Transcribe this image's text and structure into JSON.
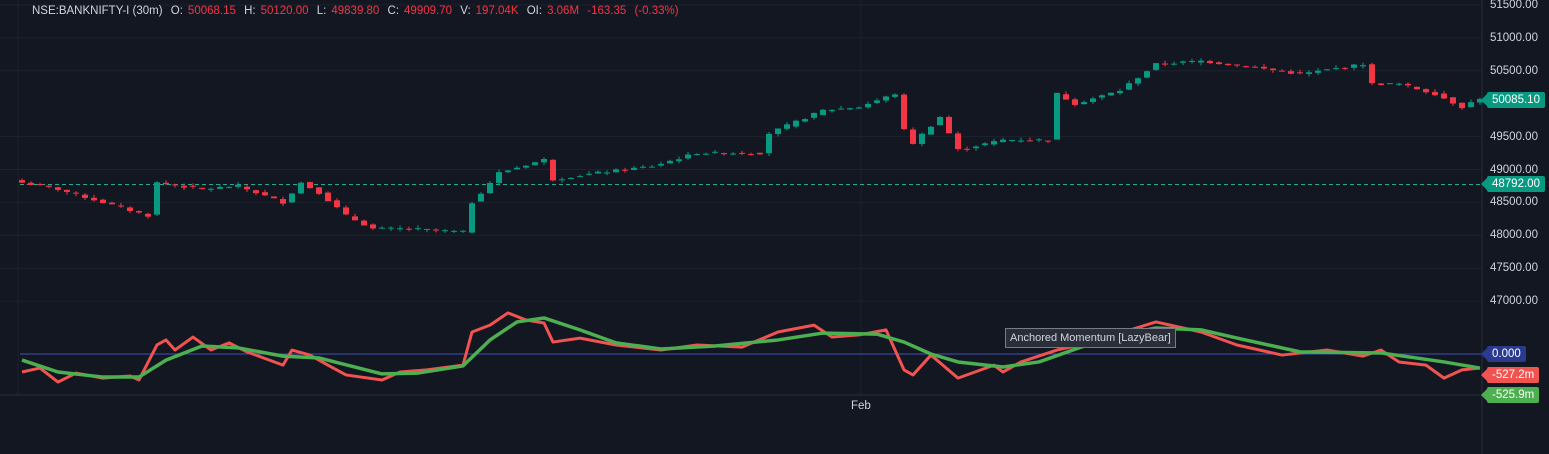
{
  "header": {
    "symbol": "NSE:BANKNIFTY-I (30m)",
    "open_label": "O:",
    "open": "50068.15",
    "high_label": "H:",
    "high": "50120.00",
    "low_label": "L:",
    "low": "49839.80",
    "close_label": "C:",
    "close": "49909.70",
    "volume_label": "V:",
    "volume": "197.04K",
    "oi_label": "OI:",
    "oi": "3.06M",
    "change": "-163.35",
    "change_pct": "(-0.33%)"
  },
  "price_axis": {
    "ticks": [
      "51500.00",
      "51000.00",
      "50500.00",
      "49500.00",
      "49000.00",
      "48500.00",
      "48000.00",
      "47500.00",
      "47000.00"
    ],
    "tick_values": [
      51500,
      51000,
      50500,
      49500,
      49000,
      48500,
      48000,
      47500,
      47000
    ],
    "last_price": "50085.10",
    "reference_price": "48792.00"
  },
  "indicator_axis": {
    "zero": "0.000",
    "momentum": "-527.2m",
    "signal": "-525.9m"
  },
  "tooltip": "Anchored Momentum [LazyBear]",
  "time_axis": {
    "label": "Feb"
  },
  "colors": {
    "background": "#131722",
    "up": "#089981",
    "down": "#f23645",
    "momentum": "#f05350",
    "signal": "#4caf50",
    "zero_line": "#3f51b5",
    "reference_line": "#22ab94"
  },
  "chart_data": {
    "type": "candlestick",
    "bars": 163,
    "price_ylim": [
      46700,
      51550
    ],
    "close_keypoints": [
      [
        0,
        48800
      ],
      [
        4,
        48700
      ],
      [
        9,
        48500
      ],
      [
        14,
        48300
      ],
      [
        15,
        48800
      ],
      [
        20,
        48700
      ],
      [
        24,
        48750
      ],
      [
        29,
        48500
      ],
      [
        31,
        48800
      ],
      [
        33,
        48650
      ],
      [
        36,
        48300
      ],
      [
        39,
        48100
      ],
      [
        43,
        48100
      ],
      [
        49,
        48050
      ],
      [
        50,
        48500
      ],
      [
        53,
        48950
      ],
      [
        58,
        49150
      ],
      [
        59,
        48850
      ],
      [
        64,
        48950
      ],
      [
        70,
        49050
      ],
      [
        75,
        49250
      ],
      [
        82,
        49250
      ],
      [
        83,
        49550
      ],
      [
        89,
        49900
      ],
      [
        93,
        49950
      ],
      [
        97,
        50150
      ],
      [
        98,
        49600
      ],
      [
        99,
        49400
      ],
      [
        102,
        49800
      ],
      [
        104,
        49300
      ],
      [
        109,
        49450
      ],
      [
        114,
        49450
      ],
      [
        115,
        50150
      ],
      [
        117,
        50000
      ],
      [
        122,
        50200
      ],
      [
        126,
        50600
      ],
      [
        131,
        50650
      ],
      [
        137,
        50550
      ],
      [
        142,
        50450
      ],
      [
        149,
        50600
      ],
      [
        150,
        50300
      ],
      [
        153,
        50300
      ],
      [
        157,
        50150
      ],
      [
        160,
        49950
      ],
      [
        162,
        50085
      ]
    ],
    "indicator": {
      "name": "Anchored Momentum [LazyBear]",
      "momentum": [
        [
          0,
          -0.68
        ],
        [
          2,
          -0.53
        ],
        [
          4,
          -1.06
        ],
        [
          6,
          -0.72
        ],
        [
          9,
          -0.91
        ],
        [
          12,
          -0.83
        ],
        [
          13,
          -0.98
        ],
        [
          15,
          0.34
        ],
        [
          16,
          0.53
        ],
        [
          17,
          0.15
        ],
        [
          19,
          0.64
        ],
        [
          21,
          0.15
        ],
        [
          23,
          0.42
        ],
        [
          25,
          0.08
        ],
        [
          29,
          -0.42
        ],
        [
          30,
          0.15
        ],
        [
          32,
          -0.04
        ],
        [
          34,
          -0.42
        ],
        [
          36,
          -0.79
        ],
        [
          40,
          -0.98
        ],
        [
          42,
          -0.68
        ],
        [
          45,
          -0.6
        ],
        [
          49,
          -0.42
        ],
        [
          50,
          0.83
        ],
        [
          52,
          1.09
        ],
        [
          54,
          1.55
        ],
        [
          56,
          1.28
        ],
        [
          58,
          1.17
        ],
        [
          59,
          0.45
        ],
        [
          62,
          0.6
        ],
        [
          66,
          0.34
        ],
        [
          71,
          0.15
        ],
        [
          75,
          0.34
        ],
        [
          80,
          0.26
        ],
        [
          84,
          0.83
        ],
        [
          88,
          1.09
        ],
        [
          90,
          0.64
        ],
        [
          93,
          0.72
        ],
        [
          96,
          0.91
        ],
        [
          98,
          -0.6
        ],
        [
          99,
          -0.79
        ],
        [
          101,
          -0.04
        ],
        [
          104,
          -0.91
        ],
        [
          108,
          -0.42
        ],
        [
          109,
          -0.68
        ],
        [
          111,
          -0.3
        ],
        [
          115,
          0.15
        ],
        [
          118,
          0.38
        ],
        [
          122,
          0.79
        ],
        [
          126,
          1.21
        ],
        [
          131,
          0.83
        ],
        [
          135,
          0.34
        ],
        [
          140,
          -0.04
        ],
        [
          145,
          0.15
        ],
        [
          149,
          -0.08
        ],
        [
          151,
          0.15
        ],
        [
          153,
          -0.3
        ],
        [
          156,
          -0.42
        ],
        [
          158,
          -0.91
        ],
        [
          160,
          -0.6
        ],
        [
          162,
          -0.53
        ]
      ],
      "signal": [
        [
          0,
          -0.23
        ],
        [
          4,
          -0.68
        ],
        [
          9,
          -0.87
        ],
        [
          13,
          -0.87
        ],
        [
          16,
          -0.23
        ],
        [
          20,
          0.3
        ],
        [
          24,
          0.23
        ],
        [
          29,
          -0.08
        ],
        [
          33,
          -0.15
        ],
        [
          40,
          -0.75
        ],
        [
          44,
          -0.72
        ],
        [
          49,
          -0.45
        ],
        [
          52,
          0.53
        ],
        [
          55,
          1.21
        ],
        [
          58,
          1.36
        ],
        [
          62,
          0.91
        ],
        [
          66,
          0.42
        ],
        [
          71,
          0.19
        ],
        [
          77,
          0.3
        ],
        [
          84,
          0.53
        ],
        [
          89,
          0.79
        ],
        [
          95,
          0.75
        ],
        [
          98,
          0.45
        ],
        [
          101,
          0
        ],
        [
          104,
          -0.3
        ],
        [
          109,
          -0.49
        ],
        [
          113,
          -0.3
        ],
        [
          118,
          0.3
        ],
        [
          122,
          0.72
        ],
        [
          126,
          0.98
        ],
        [
          131,
          0.91
        ],
        [
          135,
          0.6
        ],
        [
          142,
          0.08
        ],
        [
          151,
          0.04
        ],
        [
          158,
          -0.3
        ],
        [
          162,
          -0.53
        ]
      ]
    }
  }
}
